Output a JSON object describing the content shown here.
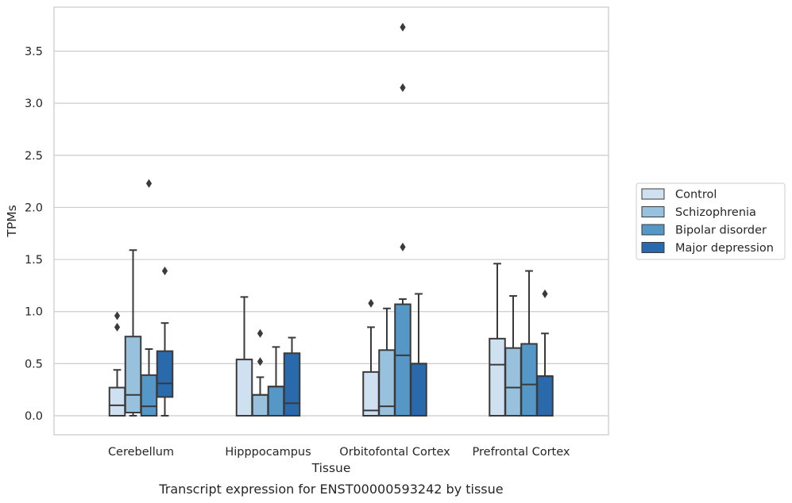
{
  "chart_data": {
    "type": "box",
    "xlabel": "Tissue",
    "ylabel": "TPMs",
    "caption": "Transcript expression for ENST00000593242 by tissue",
    "ylim": [
      -0.18,
      3.95
    ],
    "yticks": [
      "0.0",
      "0.5",
      "1.0",
      "1.5",
      "2.0",
      "2.5",
      "3.0",
      "3.5"
    ],
    "grid": "horizontal",
    "legend_position": "right",
    "categories": [
      "Cerebellum",
      "Hipppocampus",
      "Orbitofontal Cortex",
      "Prefrontal Cortex"
    ],
    "series": [
      {
        "name": "Control",
        "color": "#cfe0f0",
        "boxes": [
          {
            "whislo": 0.0,
            "q1": 0.0,
            "med": 0.1,
            "q3": 0.27,
            "whishi": 0.44,
            "fliers": [
              0.85,
              0.96
            ]
          },
          {
            "whislo": 0.0,
            "q1": 0.0,
            "med": 0.0,
            "q3": 0.54,
            "whishi": 1.14,
            "fliers": []
          },
          {
            "whislo": 0.0,
            "q1": 0.0,
            "med": 0.05,
            "q3": 0.42,
            "whishi": 0.85,
            "fliers": [
              1.08
            ]
          },
          {
            "whislo": 0.0,
            "q1": 0.0,
            "med": 0.49,
            "q3": 0.74,
            "whishi": 1.46,
            "fliers": []
          }
        ]
      },
      {
        "name": "Schizophrenia",
        "color": "#97c1dd",
        "boxes": [
          {
            "whislo": 0.0,
            "q1": 0.03,
            "med": 0.2,
            "q3": 0.76,
            "whishi": 1.59,
            "fliers": []
          },
          {
            "whislo": 0.0,
            "q1": 0.0,
            "med": 0.2,
            "q3": 0.2,
            "whishi": 0.37,
            "fliers": [
              0.52,
              0.79
            ]
          },
          {
            "whislo": 0.0,
            "q1": 0.0,
            "med": 0.09,
            "q3": 0.63,
            "whishi": 1.03,
            "fliers": []
          },
          {
            "whislo": 0.0,
            "q1": 0.0,
            "med": 0.27,
            "q3": 0.65,
            "whishi": 1.15,
            "fliers": []
          }
        ]
      },
      {
        "name": "Bipolar disorder",
        "color": "#5597c6",
        "boxes": [
          {
            "whislo": 0.0,
            "q1": 0.0,
            "med": 0.09,
            "q3": 0.39,
            "whishi": 0.64,
            "fliers": [
              2.23
            ]
          },
          {
            "whislo": 0.0,
            "q1": 0.0,
            "med": 0.28,
            "q3": 0.28,
            "whishi": 0.66,
            "fliers": []
          },
          {
            "whislo": 0.0,
            "q1": 0.0,
            "med": 0.58,
            "q3": 1.07,
            "whishi": 1.12,
            "fliers": [
              1.62,
              3.15,
              3.73
            ]
          },
          {
            "whislo": 0.0,
            "q1": 0.0,
            "med": 0.3,
            "q3": 0.69,
            "whishi": 1.39,
            "fliers": []
          }
        ]
      },
      {
        "name": "Major depression",
        "color": "#2a6aac",
        "boxes": [
          {
            "whislo": 0.0,
            "q1": 0.18,
            "med": 0.31,
            "q3": 0.62,
            "whishi": 0.89,
            "fliers": [
              1.39
            ]
          },
          {
            "whislo": 0.0,
            "q1": 0.0,
            "med": 0.12,
            "q3": 0.6,
            "whishi": 0.75,
            "fliers": []
          },
          {
            "whislo": 0.0,
            "q1": 0.0,
            "med": 0.5,
            "q3": 0.5,
            "whishi": 1.17,
            "fliers": []
          },
          {
            "whislo": 0.0,
            "q1": 0.0,
            "med": 0.38,
            "q3": 0.38,
            "whishi": 0.79,
            "fliers": [
              1.17
            ]
          }
        ]
      }
    ]
  }
}
